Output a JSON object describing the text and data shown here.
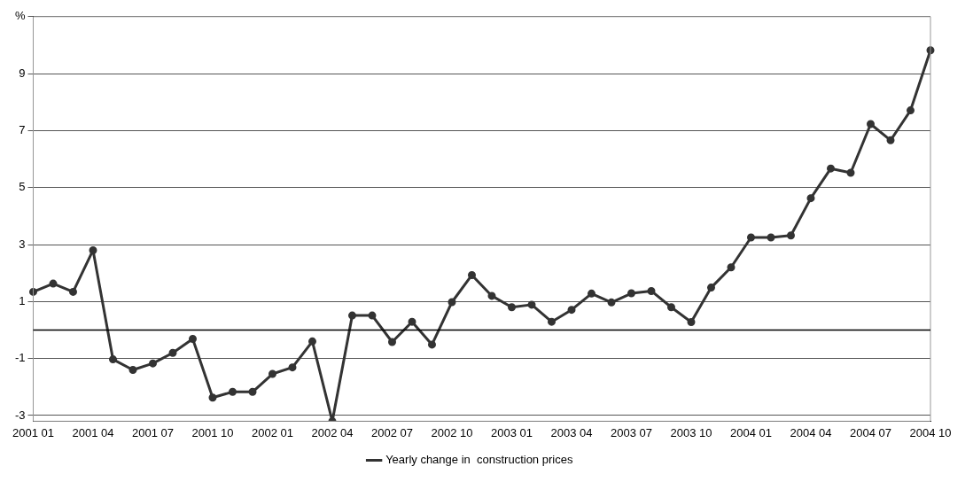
{
  "chart_data": {
    "type": "line",
    "categories": [
      "2001 01",
      null,
      null,
      "2001 04",
      null,
      null,
      "2001 07",
      null,
      null,
      "2001 10",
      null,
      null,
      "2002 01",
      null,
      null,
      "2002 04",
      null,
      null,
      "2002 07",
      null,
      null,
      "2002 10",
      null,
      null,
      "2003 01",
      null,
      null,
      "2003 04",
      null,
      null,
      "2003 07",
      null,
      null,
      "2003 10",
      null,
      null,
      "2004 01",
      null,
      null,
      "2004 04",
      null,
      null,
      "2004 07",
      null,
      null,
      "2004 10"
    ],
    "series": [
      {
        "name": "Yearly change in  construction prices",
        "color": "#333333",
        "values": [
          1.34,
          1.63,
          1.34,
          2.8,
          -1.03,
          -1.4,
          -1.17,
          -0.8,
          -0.31,
          -2.37,
          -2.17,
          -2.17,
          -1.54,
          -1.31,
          -0.4,
          -3.2,
          0.51,
          0.51,
          -0.42,
          0.29,
          -0.51,
          0.98,
          1.93,
          1.2,
          0.8,
          0.89,
          0.29,
          0.71,
          1.28,
          0.97,
          1.29,
          1.37,
          0.8,
          0.28,
          1.49,
          2.2,
          3.25,
          3.25,
          3.32,
          4.63,
          5.67,
          5.52,
          7.23,
          6.66,
          7.71,
          9.82
        ]
      }
    ],
    "ylim": [
      -3.2,
      11
    ],
    "yticks": [
      -3,
      -1,
      1,
      3,
      5,
      7,
      9,
      {
        "value": 11,
        "label": "%"
      }
    ],
    "ref_lines": [
      {
        "axis": "y",
        "value": 0,
        "color": "#000000"
      }
    ],
    "grid": "y",
    "legend": "bottom",
    "marker": "circle",
    "line_style": "solid"
  }
}
